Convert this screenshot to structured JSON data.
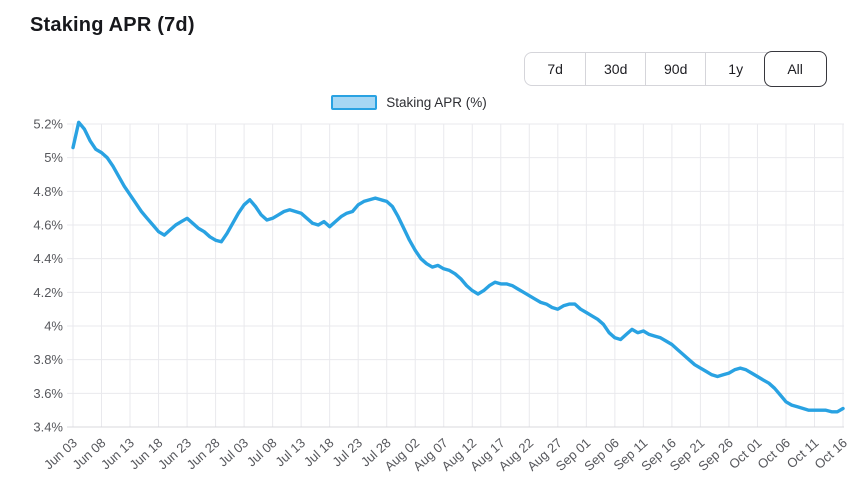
{
  "header": {
    "title": "Staking APR (7d)",
    "range_buttons": [
      {
        "label": "7d",
        "selected": false
      },
      {
        "label": "30d",
        "selected": false
      },
      {
        "label": "90d",
        "selected": false
      },
      {
        "label": "1y",
        "selected": false
      },
      {
        "label": "All",
        "selected": true
      }
    ]
  },
  "legend": {
    "label": "Staking APR (%)"
  },
  "colors": {
    "line": "#29a2e2",
    "legend_fill": "#a6d7f4",
    "grid": "#e9e9ed",
    "axis_line": "#d8d8dd",
    "axis_text": "#56575c",
    "title_text": "#17181c"
  },
  "chart_data": {
    "type": "line",
    "title": "Staking APR (7d)",
    "legend": [
      "Staking APR (%)"
    ],
    "legend_position": "top-center",
    "grid": true,
    "ylabel": "",
    "xlabel": "",
    "ylim": [
      3.4,
      5.2
    ],
    "y_tick_labels": [
      "5.2%",
      "5%",
      "4.8%",
      "4.6%",
      "4.4%",
      "4.2%",
      "4%",
      "3.8%",
      "3.6%",
      "3.4%"
    ],
    "y_tick_values": [
      5.2,
      5.0,
      4.8,
      4.6,
      4.4,
      4.2,
      4.0,
      3.8,
      3.6,
      3.4
    ],
    "x_tick_labels": [
      "Jun 03",
      "Jun 08",
      "Jun 13",
      "Jun 18",
      "Jun 23",
      "Jun 28",
      "Jul 03",
      "Jul 08",
      "Jul 13",
      "Jul 18",
      "Jul 23",
      "Jul 28",
      "Aug 02",
      "Aug 07",
      "Aug 12",
      "Aug 17",
      "Aug 22",
      "Aug 27",
      "Sep 01",
      "Sep 06",
      "Sep 11",
      "Sep 16",
      "Sep 21",
      "Sep 26",
      "Oct 01",
      "Oct 06",
      "Oct 11",
      "Oct 16"
    ],
    "x_tick_interval_days": 5,
    "series": [
      {
        "name": "Staking APR (%)",
        "color": "#29a2e2",
        "cadence": "daily",
        "x_start": "Jun 03",
        "x_end": "Oct 16",
        "values": [
          5.06,
          5.21,
          5.17,
          5.1,
          5.05,
          5.03,
          5.0,
          4.95,
          4.89,
          4.83,
          4.78,
          4.73,
          4.68,
          4.64,
          4.6,
          4.56,
          4.54,
          4.57,
          4.6,
          4.62,
          4.64,
          4.61,
          4.58,
          4.56,
          4.53,
          4.51,
          4.5,
          4.55,
          4.61,
          4.67,
          4.72,
          4.75,
          4.71,
          4.66,
          4.63,
          4.64,
          4.66,
          4.68,
          4.69,
          4.68,
          4.67,
          4.64,
          4.61,
          4.6,
          4.62,
          4.59,
          4.62,
          4.65,
          4.67,
          4.68,
          4.72,
          4.74,
          4.75,
          4.76,
          4.75,
          4.74,
          4.71,
          4.65,
          4.58,
          4.51,
          4.45,
          4.4,
          4.37,
          4.35,
          4.36,
          4.34,
          4.33,
          4.31,
          4.28,
          4.24,
          4.21,
          4.19,
          4.21,
          4.24,
          4.26,
          4.25,
          4.25,
          4.24,
          4.22,
          4.2,
          4.18,
          4.16,
          4.14,
          4.13,
          4.11,
          4.1,
          4.12,
          4.13,
          4.13,
          4.1,
          4.08,
          4.06,
          4.04,
          4.01,
          3.96,
          3.93,
          3.92,
          3.95,
          3.98,
          3.96,
          3.97,
          3.95,
          3.94,
          3.93,
          3.91,
          3.89,
          3.86,
          3.83,
          3.8,
          3.77,
          3.75,
          3.73,
          3.71,
          3.7,
          3.71,
          3.72,
          3.74,
          3.75,
          3.74,
          3.72,
          3.7,
          3.68,
          3.66,
          3.63,
          3.59,
          3.55,
          3.53,
          3.52,
          3.51,
          3.5,
          3.5,
          3.5,
          3.5,
          3.49,
          3.49,
          3.51
        ]
      }
    ]
  }
}
